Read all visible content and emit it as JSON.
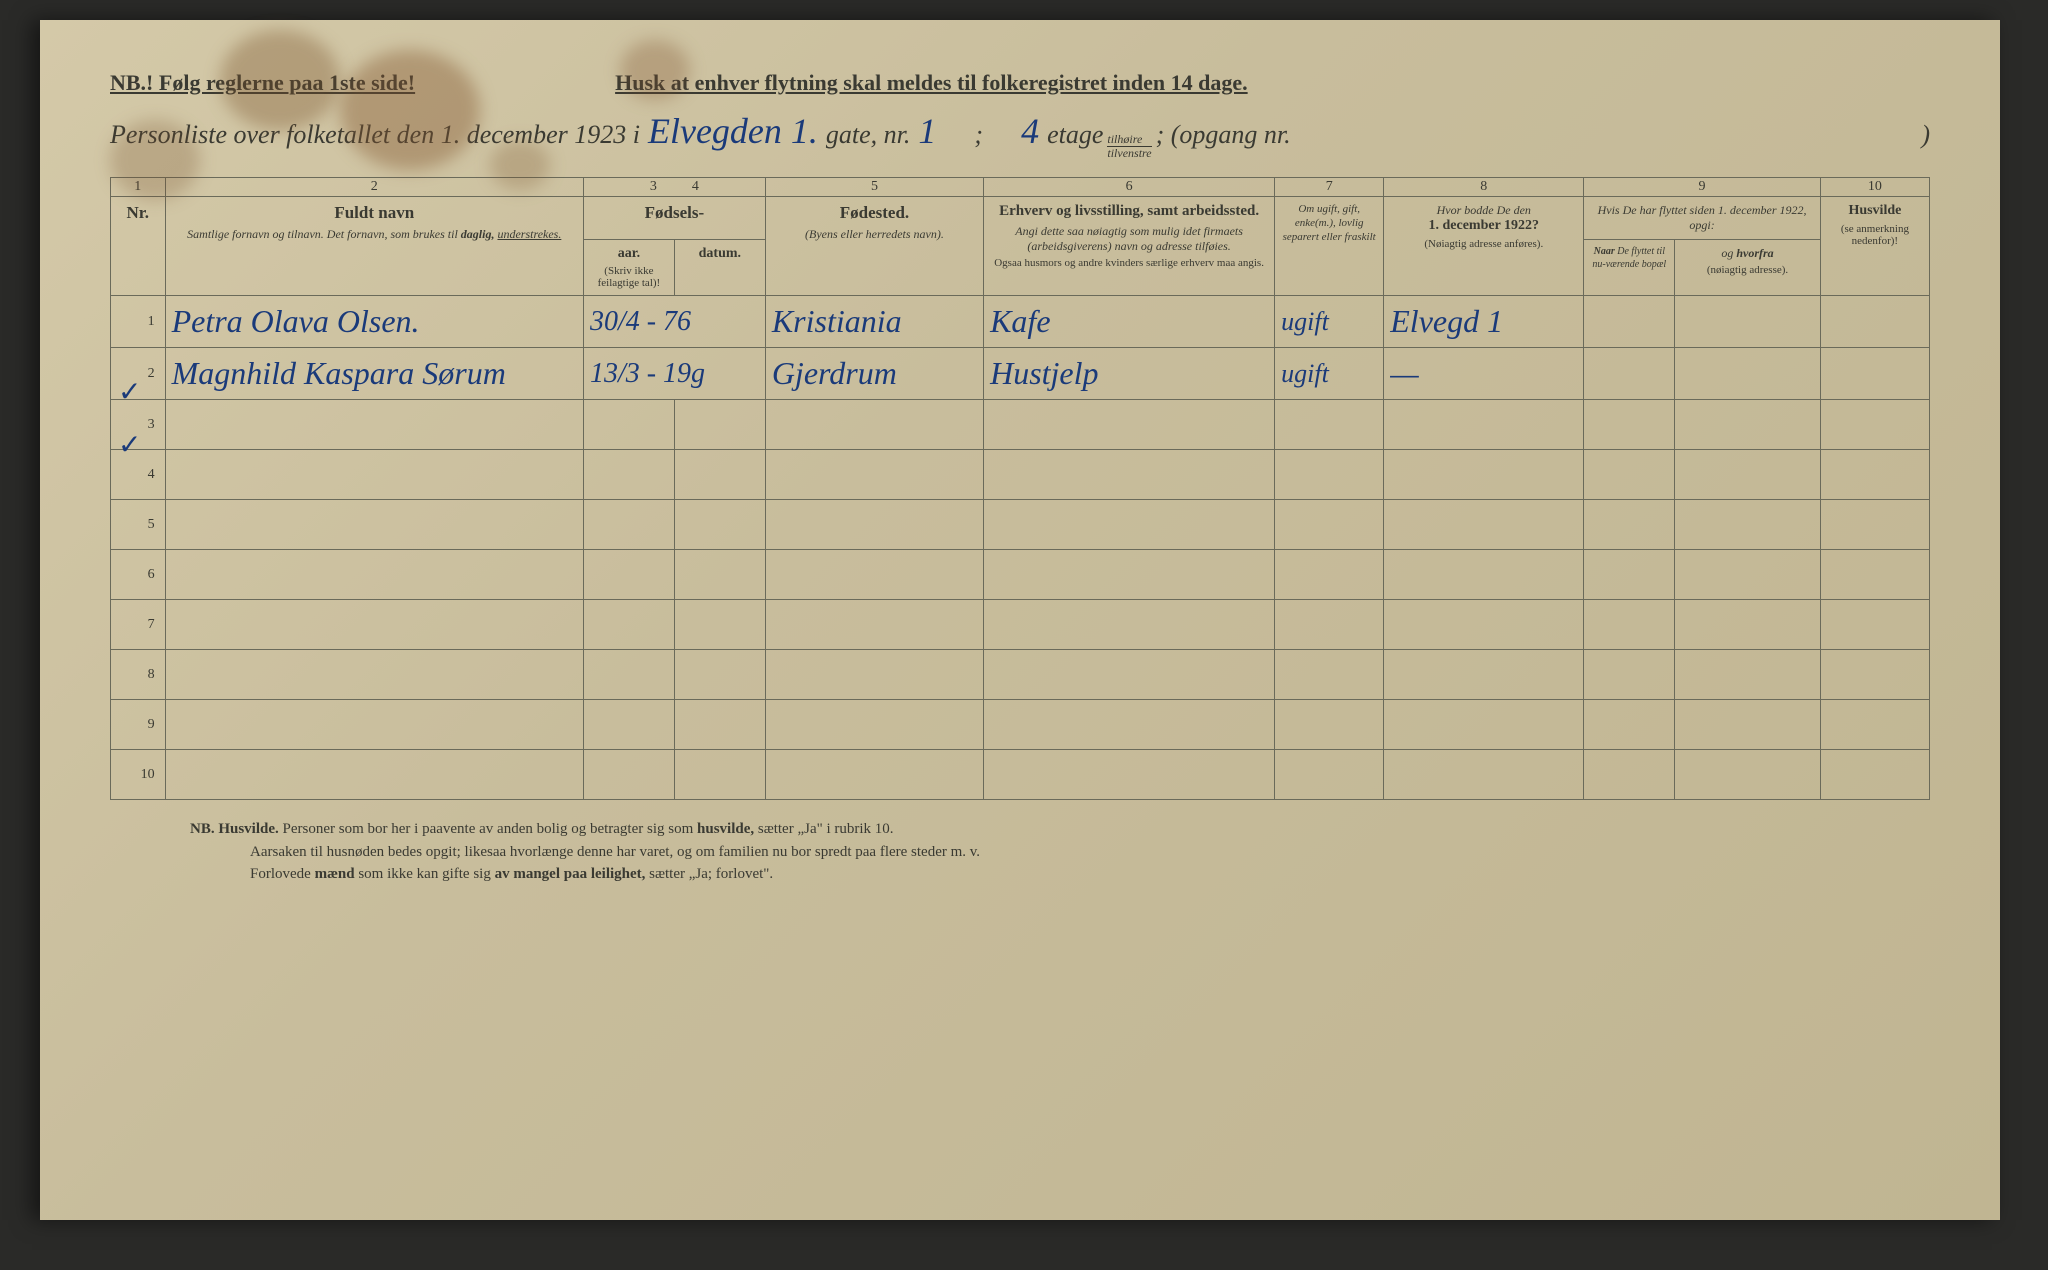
{
  "colors": {
    "paper_bg": "#c8bd9c",
    "ink_print": "#3a3a32",
    "ink_handwriting": "#1a3a7a",
    "border": "#6a6a5a"
  },
  "typography": {
    "print_font": "Georgia, serif",
    "handwriting_font": "Brush Script MT, cursive",
    "header_italic_size_pt": 20,
    "table_header_title_pt": 13,
    "table_header_sub_pt": 9,
    "handwriting_size_pt": 24
  },
  "header": {
    "nb_line": "NB.! Følg reglerne paa 1ste side!",
    "reminder": "Husk at enhver flytning skal meldes til folkeregistret inden 14 dage.",
    "intro": "Personliste over folketallet den 1. december 1923 i",
    "street_hand": "Elvegden 1.",
    "gate_label": "gate, nr.",
    "gate_nr_hand": "1",
    "semicolon": ";",
    "etage_hand": "4",
    "etage_label": "etage",
    "fraction_top": "tilhøire",
    "fraction_bottom": "tilvenstre",
    "opgang": "; (opgang nr.",
    "closing": ")"
  },
  "columns": {
    "widths_pct": [
      3,
      23,
      5,
      5,
      12,
      16,
      6,
      11,
      5,
      8,
      6
    ],
    "numbers": [
      "1",
      "2",
      "3",
      "4",
      "5",
      "6",
      "7",
      "8",
      "9",
      "",
      "10"
    ],
    "col1": {
      "title": "Nr."
    },
    "col2": {
      "title": "Fuldt navn",
      "sub": "Samtlige fornavn og tilnavn. Det fornavn, som brukes til <b>daglig</b>, <u>understrekes.</u>"
    },
    "col34_top": "Fødsels-",
    "col3": {
      "title": "aar.",
      "note": "(Skriv ikke feilagtige tal)!"
    },
    "col4": {
      "title": "datum."
    },
    "col5": {
      "title": "Fødested.",
      "sub": "(Byens eller herredets navn)."
    },
    "col6": {
      "title": "Erhverv og livsstilling, samt arbeidssted.",
      "sub": "Angi dette saa nøiagtig som mulig idet firmaets (arbeidsgiverens) navn og adresse tilføies.",
      "note": "Ogsaa husmors og andre kvinders særlige erhverv maa angis."
    },
    "col7": {
      "sub": "Om ugift, gift, enke(m.), lovlig separert eller fraskilt"
    },
    "col8": {
      "title": "Hvor bodde De den",
      "bold": "1. december 1922?",
      "note": "(Nøiagtig adresse anføres)."
    },
    "col9_top": "Hvis De har flyttet siden 1. december 1922, opgi:",
    "col9a": {
      "sub": "Naar De flyttet til nu-værende bopæl"
    },
    "col9b": {
      "title": "og hvorfra",
      "note": "(nøiagtig adresse)."
    },
    "col10": {
      "title": "Husvilde",
      "note": "(se anmerkning nedenfor)!"
    }
  },
  "rows": [
    {
      "nr": "1",
      "name": "Petra Olava Olsen.",
      "birth": "30/4 - 76",
      "birthplace": "Kristiania",
      "occupation": "Kafe",
      "marital": "ugift",
      "prev_addr": "Elvegd 1"
    },
    {
      "nr": "2",
      "name": "Magnhild Kaspara Sørum",
      "birth": "13/3 - 19g",
      "birthplace": "Gjerdrum",
      "occupation": "Hustjelp",
      "marital": "ugift",
      "prev_addr": "—"
    }
  ],
  "empty_rows": [
    "3",
    "4",
    "5",
    "6",
    "7",
    "8",
    "9",
    "10"
  ],
  "footer": {
    "line1_pre": "NB.   Husvilde.",
    "line1": "Personer som bor her i paavente av anden bolig og betragter sig som",
    "line1_b": "husvilde,",
    "line1_post": "sætter „Ja\" i rubrik 10.",
    "line2": "Aarsaken til husnøden bedes opgit; likesaa hvorlænge denne har varet, og om familien nu bor spredt paa flere steder m. v.",
    "line3_pre": "Forlovede",
    "line3_b": "mænd",
    "line3_mid": "som ikke kan gifte sig",
    "line3_b2": "av mangel paa leilighet,",
    "line3_post": "sætter „Ja; forlovet\"."
  }
}
